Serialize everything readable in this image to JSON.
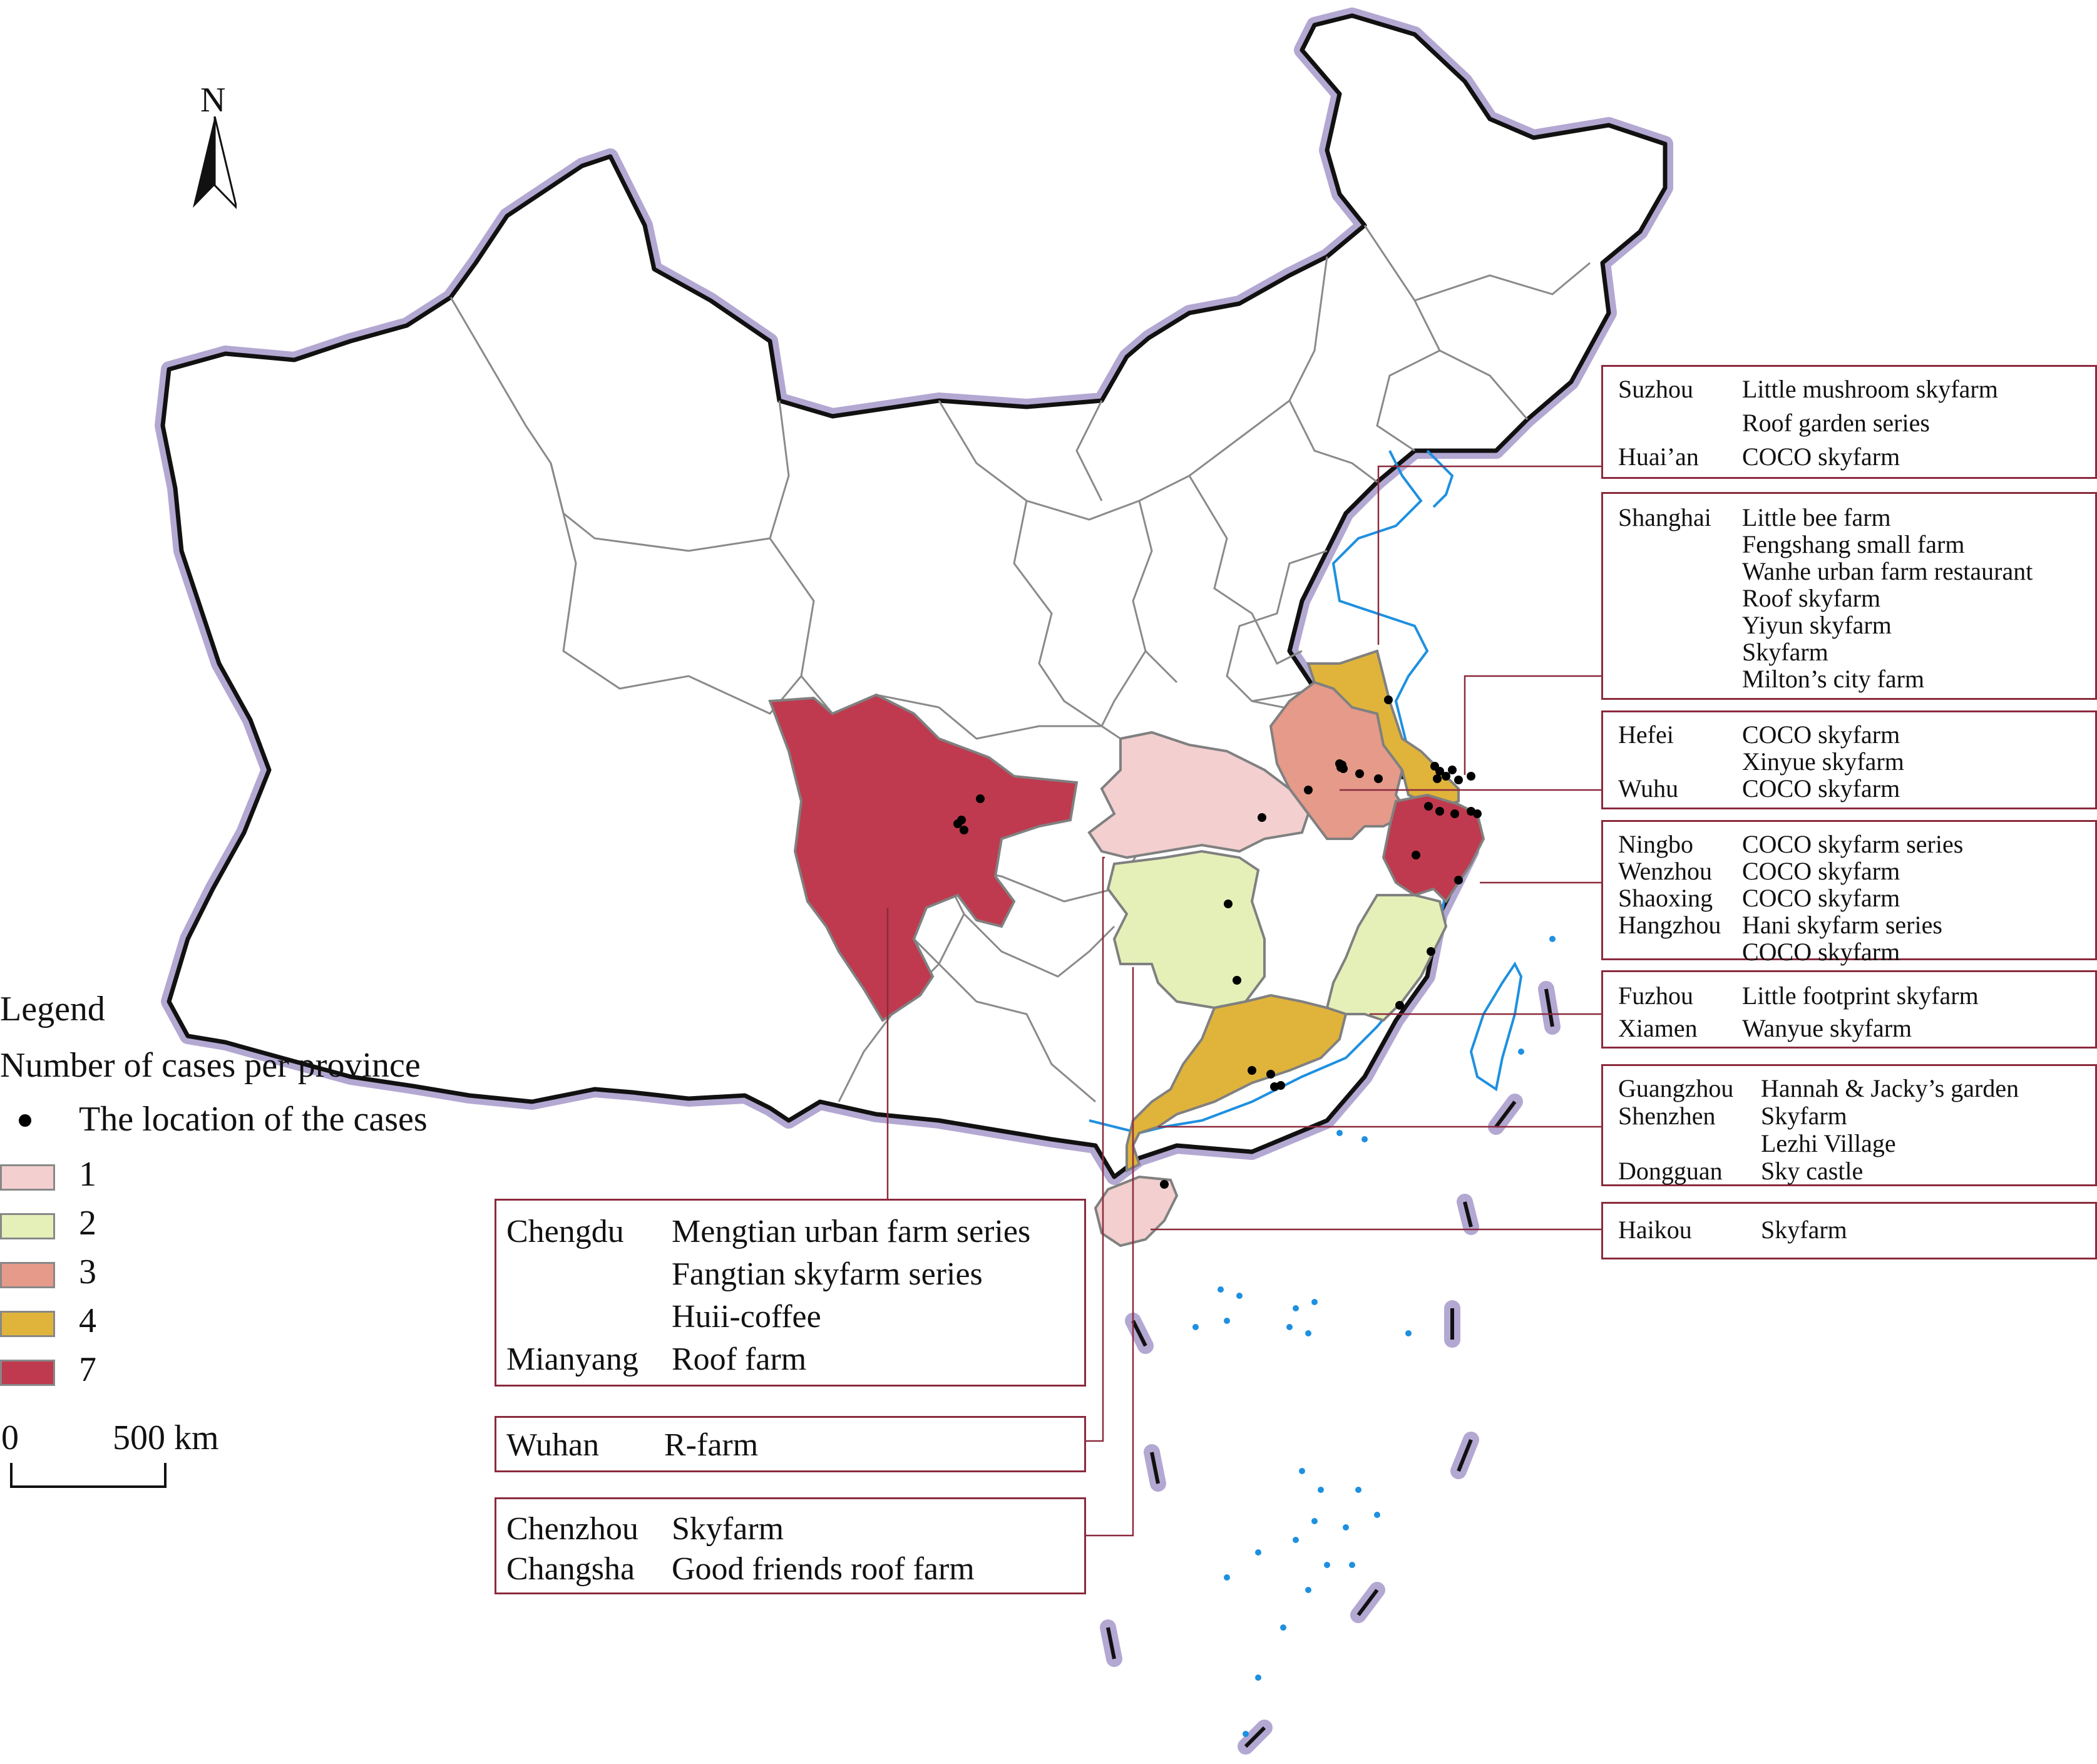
{
  "north_label": "N",
  "legend": {
    "title": "Legend",
    "subtitle": "Number of cases per province",
    "dot_label": "The location of the cases",
    "classes": [
      {
        "label": "1",
        "color": "#f3cfcf"
      },
      {
        "label": "2",
        "color": "#e4f0b8"
      },
      {
        "label": "3",
        "color": "#e59a8a"
      },
      {
        "label": "4",
        "color": "#e0b43a"
      },
      {
        "label": "7",
        "color": "#bf3a4e"
      }
    ]
  },
  "scale_bar": {
    "start": "0",
    "end": "500 km"
  },
  "callouts": {
    "chengdu": [
      {
        "city": "Chengdu",
        "farm": "Mengtian urban farm series"
      },
      {
        "city": "",
        "farm": "Fangtian skyfarm series"
      },
      {
        "city": "",
        "farm": "Huii-coffee"
      },
      {
        "city": "Mianyang",
        "farm": "Roof farm"
      }
    ],
    "wuhan": [
      {
        "city": "Wuhan",
        "farm": "R-farm"
      }
    ],
    "changsha": [
      {
        "city": "Chenzhou",
        "farm": "Skyfarm"
      },
      {
        "city": "Changsha",
        "farm": "Good friends roof farm"
      }
    ],
    "suzhou": [
      {
        "city": "Suzhou",
        "farm": "Little mushroom skyfarm"
      },
      {
        "city": "",
        "farm": "Roof garden series"
      },
      {
        "city": "Huai’an",
        "farm": "COCO skyfarm"
      }
    ],
    "shanghai": [
      {
        "city": "Shanghai",
        "farm": "Little bee farm"
      },
      {
        "city": "",
        "farm": "Fengshang small farm"
      },
      {
        "city": "",
        "farm": "Wanhe urban farm restaurant"
      },
      {
        "city": "",
        "farm": "Roof skyfarm"
      },
      {
        "city": "",
        "farm": "Yiyun skyfarm"
      },
      {
        "city": "",
        "farm": "Skyfarm"
      },
      {
        "city": "",
        "farm": "Milton’s city farm"
      }
    ],
    "hefei": [
      {
        "city": "Hefei",
        "farm": "COCO skyfarm"
      },
      {
        "city": "",
        "farm": "Xinyue skyfarm"
      },
      {
        "city": "Wuhu",
        "farm": "COCO skyfarm"
      }
    ],
    "ningbo": [
      {
        "city": "Ningbo",
        "farm": "COCO skyfarm series"
      },
      {
        "city": "Wenzhou",
        "farm": "COCO skyfarm"
      },
      {
        "city": "Shaoxing",
        "farm": "COCO skyfarm"
      },
      {
        "city": "Hangzhou",
        "farm": "Hani skyfarm series"
      },
      {
        "city": "",
        "farm": "COCO skyfarm"
      }
    ],
    "fuzhou": [
      {
        "city": "Fuzhou",
        "farm": "Little footprint skyfarm"
      },
      {
        "city": "Xiamen",
        "farm": "Wanyue skyfarm"
      }
    ],
    "guangzhou": [
      {
        "city": "Guangzhou",
        "farm": "Hannah & Jacky’s garden"
      },
      {
        "city": "Shenzhen",
        "farm": "Skyfarm"
      },
      {
        "city": "",
        "farm": "Lezhi Village"
      },
      {
        "city": "Dongguan",
        "farm": "Sky castle"
      }
    ],
    "haikou": [
      {
        "city": "Haikou",
        "farm": "Skyfarm"
      }
    ]
  },
  "colors": {
    "border_glow": "#b3a8d2",
    "coast": "#1e90e0",
    "leader": "#8b2a3e"
  }
}
